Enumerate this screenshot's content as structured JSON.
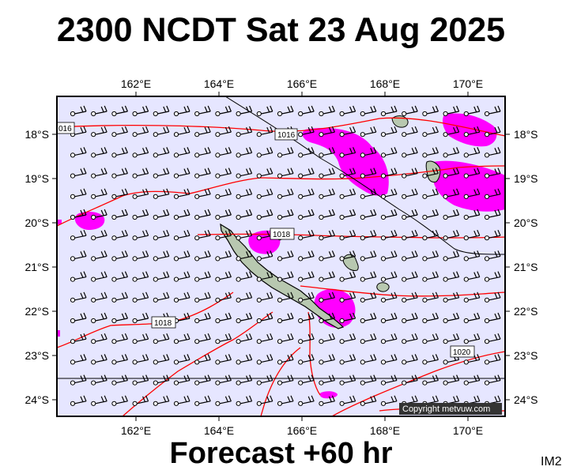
{
  "title": "2300 NCDT Sat 23 Aug 2025",
  "footer": "Forecast +60 hr",
  "image_label": "IM2",
  "copyright": "Copyright metvuw.com",
  "axes": {
    "lon_ticks": [
      "162°E",
      "164°E",
      "166°E",
      "168°E",
      "170°E"
    ],
    "lat_ticks": [
      "18°S",
      "19°S",
      "20°S",
      "21°S",
      "22°S",
      "23°S",
      "24°S"
    ]
  },
  "isobar_labels": [
    "016",
    "1016",
    "1018",
    "1018",
    "1020"
  ],
  "colors": {
    "ocean": "#e6e6ff",
    "land": "#b8c8b0",
    "isobar": "#ff0000",
    "rain": "#ff00ff",
    "frame": "#000000"
  }
}
